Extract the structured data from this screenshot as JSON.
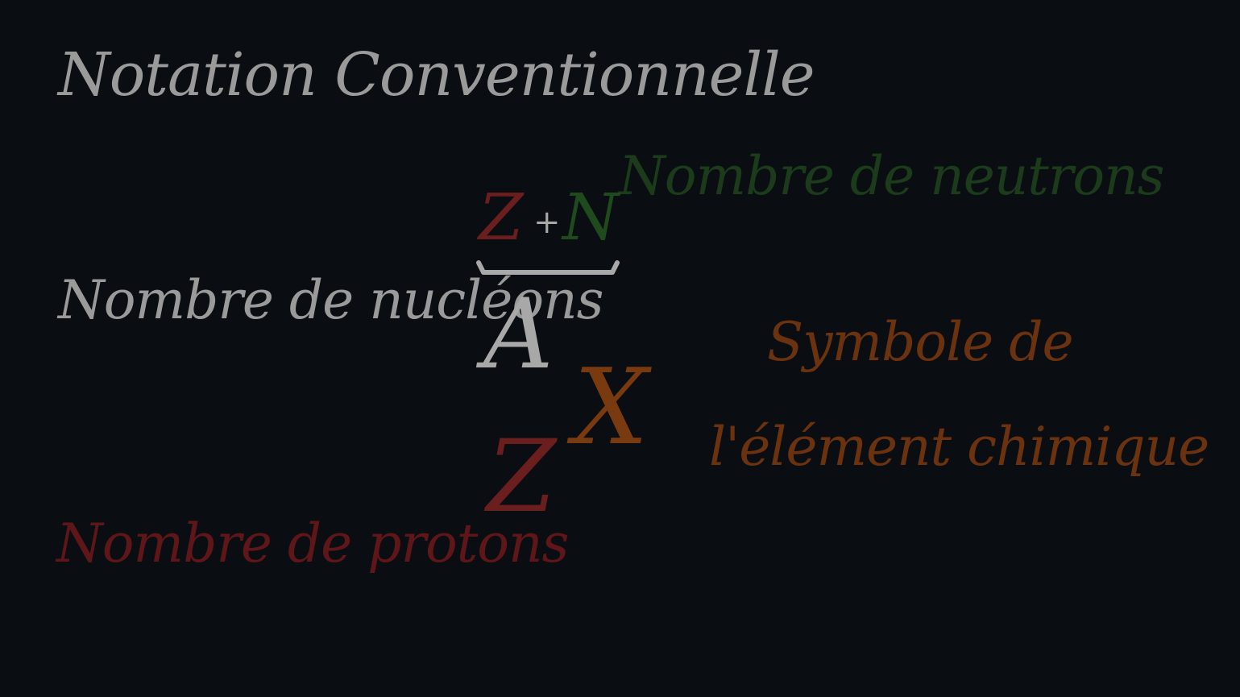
{
  "title": "Notation Conventionnelle",
  "labels": {
    "nucleons": "Nombre de nucléons",
    "protons": "Nombre de protons",
    "neutrons": "Nombre de neutrons",
    "symbole_line1": "Symbole de",
    "symbole_line2": "l'élément chimique"
  },
  "formula": {
    "z_top": "Z",
    "plus": "+",
    "n": "N",
    "a": "A",
    "x": "X",
    "z_bottom": "Z"
  },
  "colors": {
    "background": "#0a0d12",
    "neutral": "#9a9a9a",
    "protons": "#5e1618",
    "neutrons": "#1b3b1b",
    "element": "#6b3210"
  }
}
